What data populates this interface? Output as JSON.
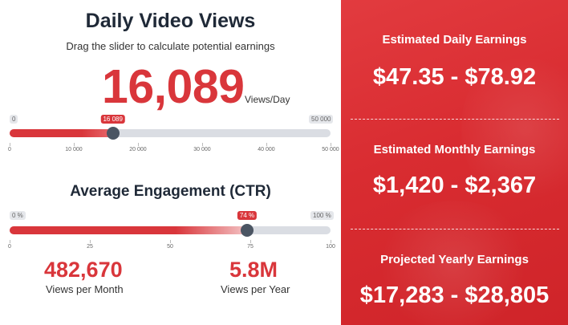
{
  "daily": {
    "title": "Daily Video Views",
    "subtitle": "Drag the slider to calculate potential earnings",
    "value_display": "16,089",
    "unit": "Views/Day",
    "slider": {
      "min_label": "0",
      "max_label": "50 000",
      "value_label": "16 089",
      "value": 16089,
      "min": 0,
      "max": 50000,
      "ticks": [
        "0",
        "10 000",
        "20 000",
        "30 000",
        "40 000",
        "50 000"
      ]
    }
  },
  "engagement": {
    "title": "Average Engagement (CTR)",
    "slider": {
      "min_label": "0 %",
      "max_label": "100 %",
      "value_label": "74 %",
      "value": 74,
      "min": 0,
      "max": 100,
      "ticks": [
        "0",
        "25",
        "50",
        "75",
        "100"
      ]
    }
  },
  "stats": {
    "monthly_views": "482,670",
    "monthly_label": "Views per Month",
    "yearly_views": "5.8M",
    "yearly_label": "Views per Year"
  },
  "earnings": {
    "daily_title": "Estimated Daily Earnings",
    "daily_value": "$47.35 - $78.92",
    "monthly_title": "Estimated Monthly Earnings",
    "monthly_value": "$1,420 - $2,367",
    "yearly_title": "Projected Yearly Earnings",
    "yearly_value": "$17,283 - $28,805"
  },
  "colors": {
    "accent": "#d9363b",
    "panel": "#d92c31",
    "thumb": "#4b5563",
    "track": "#dadde3"
  }
}
